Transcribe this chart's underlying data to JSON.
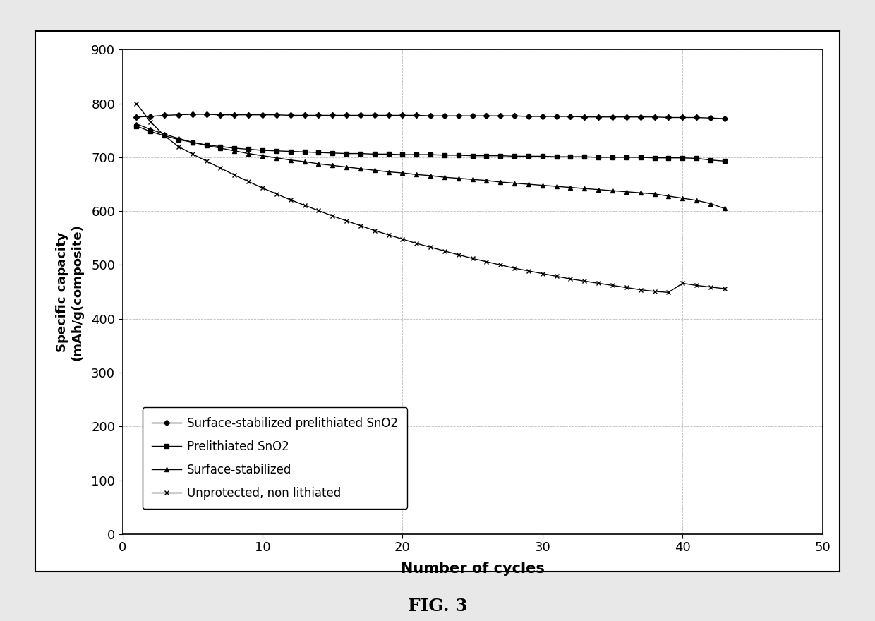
{
  "title": "FIG. 3",
  "xlabel": "Number of cycles",
  "ylabel": "Specific capacity\n(mAh/g(composite)",
  "xlim": [
    0,
    50
  ],
  "ylim": [
    0,
    900
  ],
  "xticks": [
    0,
    10,
    20,
    30,
    40,
    50
  ],
  "yticks": [
    0,
    100,
    200,
    300,
    400,
    500,
    600,
    700,
    800,
    900
  ],
  "series": [
    {
      "label": "Surface-stabilized prelithiated SnO2",
      "marker": "D",
      "markersize": 4,
      "color": "#000000",
      "x": [
        1,
        2,
        3,
        4,
        5,
        6,
        7,
        8,
        9,
        10,
        11,
        12,
        13,
        14,
        15,
        16,
        17,
        18,
        19,
        20,
        21,
        22,
        23,
        24,
        25,
        26,
        27,
        28,
        29,
        30,
        31,
        32,
        33,
        34,
        35,
        36,
        37,
        38,
        39,
        40,
        41,
        42,
        43
      ],
      "y": [
        775,
        776,
        778,
        779,
        780,
        780,
        779,
        779,
        779,
        779,
        779,
        778,
        778,
        778,
        778,
        778,
        778,
        778,
        778,
        778,
        778,
        777,
        777,
        777,
        777,
        777,
        777,
        777,
        776,
        776,
        776,
        776,
        775,
        775,
        775,
        775,
        775,
        775,
        774,
        774,
        774,
        773,
        772
      ]
    },
    {
      "label": "Prelithiated SnO2",
      "marker": "s",
      "markersize": 4,
      "color": "#000000",
      "x": [
        1,
        2,
        3,
        4,
        5,
        6,
        7,
        8,
        9,
        10,
        11,
        12,
        13,
        14,
        15,
        16,
        17,
        18,
        19,
        20,
        21,
        22,
        23,
        24,
        25,
        26,
        27,
        28,
        29,
        30,
        31,
        32,
        33,
        34,
        35,
        36,
        37,
        38,
        39,
        40,
        41,
        42,
        43
      ],
      "y": [
        758,
        748,
        740,
        733,
        728,
        723,
        720,
        717,
        715,
        713,
        712,
        711,
        710,
        709,
        708,
        707,
        707,
        706,
        706,
        705,
        705,
        705,
        704,
        704,
        703,
        703,
        703,
        702,
        702,
        702,
        701,
        701,
        701,
        700,
        700,
        700,
        700,
        699,
        699,
        699,
        698,
        695,
        693
      ]
    },
    {
      "label": "Surface-stabilized",
      "marker": "^",
      "markersize": 4,
      "color": "#000000",
      "x": [
        1,
        2,
        3,
        4,
        5,
        6,
        7,
        8,
        9,
        10,
        11,
        12,
        13,
        14,
        15,
        16,
        17,
        18,
        19,
        20,
        21,
        22,
        23,
        24,
        25,
        26,
        27,
        28,
        29,
        30,
        31,
        32,
        33,
        34,
        35,
        36,
        37,
        38,
        39,
        40,
        41,
        42,
        43
      ],
      "y": [
        762,
        752,
        743,
        735,
        728,
        722,
        717,
        712,
        707,
        703,
        699,
        695,
        692,
        688,
        685,
        682,
        679,
        676,
        673,
        671,
        668,
        666,
        663,
        661,
        659,
        657,
        654,
        652,
        650,
        648,
        646,
        644,
        642,
        640,
        638,
        636,
        634,
        632,
        628,
        624,
        620,
        614,
        605
      ]
    },
    {
      "label": "Unprotected, non lithiated",
      "marker": "x",
      "markersize": 5,
      "color": "#000000",
      "x": [
        1,
        2,
        3,
        4,
        5,
        6,
        7,
        8,
        9,
        10,
        11,
        12,
        13,
        14,
        15,
        16,
        17,
        18,
        19,
        20,
        21,
        22,
        23,
        24,
        25,
        26,
        27,
        28,
        29,
        30,
        31,
        32,
        33,
        34,
        35,
        36,
        37,
        38,
        39,
        40,
        41,
        42,
        43
      ],
      "y": [
        800,
        766,
        740,
        720,
        706,
        693,
        680,
        667,
        655,
        643,
        632,
        621,
        611,
        601,
        591,
        582,
        573,
        564,
        556,
        548,
        540,
        533,
        526,
        519,
        512,
        506,
        500,
        494,
        489,
        484,
        479,
        474,
        470,
        466,
        462,
        458,
        454,
        451,
        449,
        466,
        462,
        459,
        456
      ]
    }
  ],
  "background_color": "#ffffff",
  "grid_color": "#bbbbbb",
  "outer_bg": "#e8e8e8"
}
